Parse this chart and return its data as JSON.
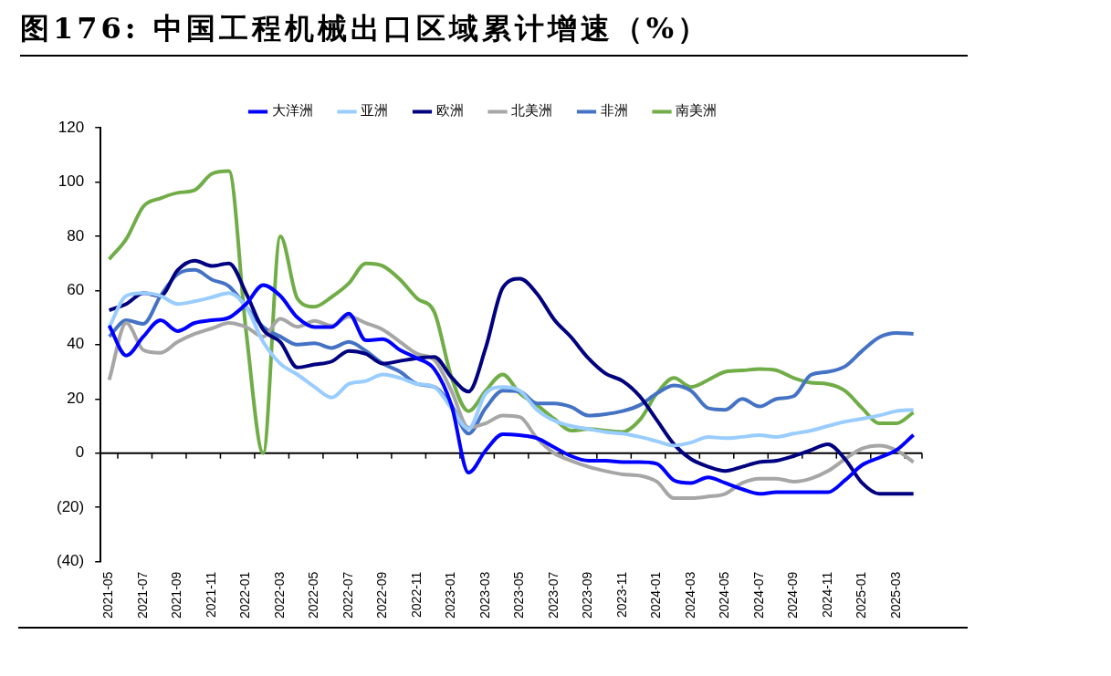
{
  "chart_data": {
    "type": "line",
    "title": "图176:  中国工程机械出口区域累计增速（%）",
    "categories": [
      "2021-05",
      null,
      "2021-07",
      null,
      "2021-09",
      null,
      "2021-11",
      null,
      "2022-01",
      null,
      "2022-03",
      null,
      "2022-05",
      null,
      "2022-07",
      null,
      "2022-09",
      null,
      "2022-11",
      null,
      "2023-01",
      null,
      "2023-03",
      null,
      "2023-05",
      null,
      "2023-07",
      null,
      "2023-09",
      null,
      "2023-11",
      null,
      "2024-01",
      null,
      "2024-03",
      null,
      "2024-05",
      null,
      "2024-07",
      null,
      "2024-09",
      null,
      "2024-11",
      null,
      "2025-01",
      null,
      "2025-03",
      null
    ],
    "series": [
      {
        "name": "大洋洲",
        "color": "#0000ff",
        "values": [
          47,
          36,
          43,
          49,
          45,
          48,
          49,
          50,
          55,
          62,
          58,
          50,
          46.5,
          46.5,
          51.5,
          41.6,
          42,
          38,
          35,
          31,
          17.7,
          -7.2,
          1,
          7,
          6.6,
          5.5,
          2.2,
          -1.1,
          -2.8,
          -2.8,
          -3.3,
          -3.3,
          -3.9,
          -10,
          -11,
          -8.9,
          -11,
          -13.3,
          -15,
          -14.4,
          -14.4,
          -14.4,
          -14.4,
          -10,
          -4.4,
          -1.7,
          1.1,
          6.7
        ]
      },
      {
        "name": "亚洲",
        "color": "#99ccff",
        "values": [
          46.5,
          58,
          59,
          58,
          55,
          56,
          57.5,
          59,
          54,
          41,
          33,
          29,
          24.4,
          20.5,
          25.5,
          26.6,
          29,
          27.7,
          25.5,
          24.4,
          16.6,
          9,
          22,
          24.4,
          23,
          16,
          12,
          10,
          8.9,
          7.8,
          7.2,
          6,
          4.4,
          2.8,
          3.9,
          6,
          5.5,
          6,
          6.6,
          6,
          7.2,
          8.3,
          10,
          11.6,
          12.7,
          13.9,
          15.5,
          16
        ]
      },
      {
        "name": "欧洲",
        "color": "#000080",
        "values": [
          52.7,
          55,
          59,
          58,
          67.5,
          71,
          69,
          70,
          59,
          45.5,
          41,
          31.6,
          32.7,
          33.8,
          37.7,
          36.6,
          33,
          34,
          35,
          35.5,
          28,
          22.7,
          38.8,
          61,
          64.3,
          58.8,
          49.3,
          42.7,
          35,
          29.4,
          26.6,
          21,
          12.2,
          3.3,
          -2.2,
          -5,
          -6.6,
          -5,
          -3.3,
          -2.8,
          -1.1,
          1.1,
          3.3,
          -2.2,
          -11,
          -15,
          -15,
          -15
        ]
      },
      {
        "name": "北美洲",
        "color": "#a6a6a6",
        "values": [
          27,
          48,
          38,
          37,
          41,
          44,
          46,
          48,
          46.5,
          43,
          49.5,
          46.6,
          48.8,
          47,
          50.4,
          48,
          45.5,
          41,
          36.6,
          34.4,
          23,
          9.4,
          11,
          13.9,
          13.3,
          5.5,
          0,
          -2.8,
          -5,
          -6.6,
          -7.8,
          -8.3,
          -10.5,
          -16.6,
          -16.6,
          -16,
          -15,
          -11,
          -9.4,
          -9.4,
          -10.5,
          -9.4,
          -6.6,
          -2.2,
          1.7,
          2.8,
          1.1,
          -3.3
        ]
      },
      {
        "name": "非洲",
        "color": "#4472c4",
        "values": [
          43,
          49,
          47.7,
          58,
          66,
          67.6,
          64,
          61.5,
          54,
          46.5,
          43,
          40,
          40.5,
          38.8,
          41,
          37.7,
          33,
          30,
          25.5,
          24.4,
          17.7,
          7.2,
          16.6,
          23,
          22.7,
          18.3,
          18.3,
          17,
          13.9,
          14.4,
          15.5,
          17.7,
          22,
          25,
          23,
          16.6,
          16,
          20,
          17.2,
          20,
          21,
          28.8,
          30,
          32,
          37.7,
          42.7,
          44.3,
          44
        ]
      },
      {
        "name": "南美洲",
        "color": "#70ad47",
        "values": [
          71.5,
          79,
          91,
          94,
          96,
          97,
          103,
          104,
          45,
          0,
          80,
          57,
          54,
          57.6,
          62.6,
          70,
          69,
          64,
          57,
          52,
          28,
          15.5,
          23,
          29,
          22,
          17.7,
          12.7,
          8.3,
          8.9,
          8.3,
          7.8,
          12.2,
          22,
          27.7,
          24.4,
          27,
          30,
          30.5,
          31,
          30.5,
          27.7,
          26,
          25.5,
          23,
          16.6,
          11,
          11,
          15
        ]
      }
    ],
    "ylim": [
      -40,
      120
    ],
    "yticks": [
      {
        "value": -40,
        "label": "(40)"
      },
      {
        "value": -20,
        "label": "(20)"
      },
      0,
      20,
      40,
      60,
      80,
      100,
      120
    ],
    "legend": "top"
  }
}
